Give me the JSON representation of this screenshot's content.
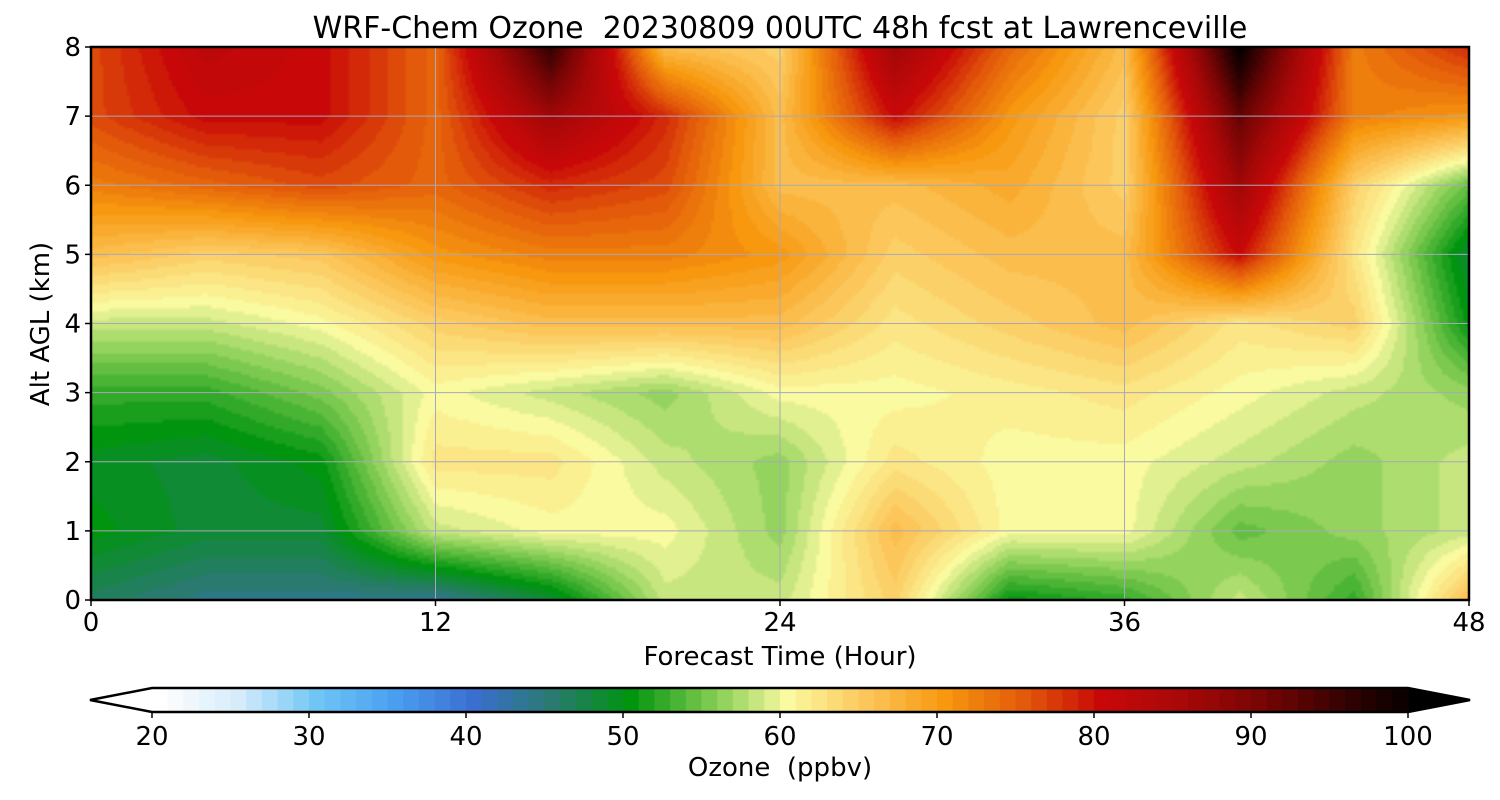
{
  "chart_data": {
    "type": "heatmap",
    "title": "WRF-Chem Ozone  20230809 00UTC 48h fcst at Lawrenceville",
    "xlabel": "Forecast Time (Hour)",
    "ylabel": "Alt AGL (km)",
    "xlim": [
      0,
      48
    ],
    "ylim": [
      0,
      8
    ],
    "grid": true,
    "x_ticks": [
      0,
      12,
      24,
      36,
      48
    ],
    "y_ticks": [
      0,
      1,
      2,
      3,
      4,
      5,
      6,
      7,
      8
    ],
    "x": [
      0,
      4,
      8,
      12,
      16,
      20,
      24,
      28,
      32,
      36,
      40,
      44,
      48
    ],
    "y": [
      0,
      1,
      2,
      3,
      4,
      5,
      6,
      7,
      8
    ],
    "z": [
      [
        46,
        44,
        44,
        43,
        48,
        58,
        58,
        64,
        50,
        52,
        58,
        52,
        66
      ],
      [
        50,
        48,
        48,
        58,
        60,
        60,
        56,
        66,
        60,
        60,
        54,
        56,
        58
      ],
      [
        49,
        48,
        50,
        62,
        62,
        58,
        56,
        62,
        60,
        60,
        58,
        56,
        58
      ],
      [
        52,
        52,
        55,
        60,
        58,
        56,
        60,
        60,
        61,
        62,
        60,
        58,
        56
      ],
      [
        58,
        58,
        60,
        64,
        66,
        66,
        66,
        62,
        64,
        66,
        62,
        64,
        50
      ],
      [
        66,
        64,
        65,
        70,
        72,
        72,
        70,
        64,
        66,
        66,
        80,
        62,
        48
      ],
      [
        72,
        74,
        76,
        74,
        78,
        76,
        66,
        66,
        68,
        64,
        86,
        64,
        54
      ],
      [
        76,
        80,
        80,
        74,
        86,
        78,
        66,
        80,
        70,
        64,
        92,
        72,
        70
      ],
      [
        76,
        82,
        80,
        74,
        96,
        66,
        64,
        86,
        74,
        66,
        100,
        72,
        78
      ]
    ],
    "colorbar": {
      "label": "Ozone  (ppbv)",
      "min": 20,
      "max": 100,
      "ticks": [
        20,
        30,
        40,
        50,
        60,
        70,
        80,
        90,
        100
      ],
      "extend": "both",
      "colormap": [
        {
          "v": 20,
          "c": "#ffffff"
        },
        {
          "v": 25,
          "c": "#d6ecfb"
        },
        {
          "v": 30,
          "c": "#6fc6f5"
        },
        {
          "v": 35,
          "c": "#4a9ef0"
        },
        {
          "v": 40,
          "c": "#3a6fd0"
        },
        {
          "v": 45,
          "c": "#2a7a70"
        },
        {
          "v": 50,
          "c": "#00940f"
        },
        {
          "v": 55,
          "c": "#7cc94f"
        },
        {
          "v": 60,
          "c": "#fafaa0"
        },
        {
          "v": 65,
          "c": "#fcc65a"
        },
        {
          "v": 70,
          "c": "#f7980f"
        },
        {
          "v": 75,
          "c": "#e35a0a"
        },
        {
          "v": 80,
          "c": "#c80808"
        },
        {
          "v": 85,
          "c": "#a80808"
        },
        {
          "v": 90,
          "c": "#7a0505"
        },
        {
          "v": 95,
          "c": "#3a0202"
        },
        {
          "v": 100,
          "c": "#000000"
        }
      ]
    }
  }
}
